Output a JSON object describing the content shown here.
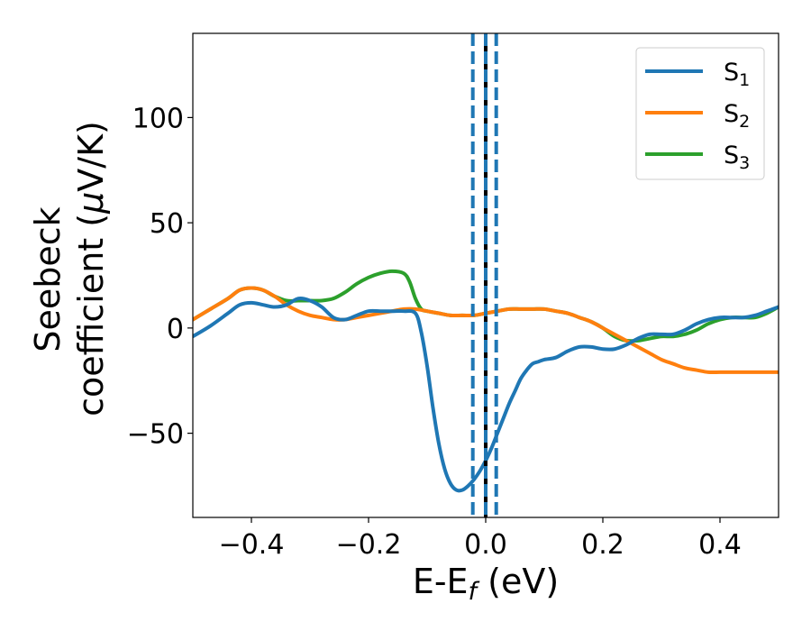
{
  "chart_data": {
    "type": "line",
    "xlabel": "E-E",
    "xlabel_sub": "f",
    "xlabel_unit": " (eV)",
    "ylabel_line1": "Seebeck",
    "ylabel_line2_prefix": "coefficient  (",
    "ylabel_mu": "μ",
    "ylabel_line2_suffix": "V/K)",
    "xlim": [
      -0.5,
      0.5
    ],
    "ylim": [
      -90,
      140
    ],
    "xticks": [
      -0.4,
      -0.2,
      0.0,
      0.2,
      0.4
    ],
    "xtick_labels": [
      "−0.4",
      "−0.2",
      "0.0",
      "0.2",
      "0.4"
    ],
    "yticks": [
      -50,
      0,
      50,
      100
    ],
    "ytick_labels": [
      "−50",
      "0",
      "50",
      "100"
    ],
    "grid": false,
    "legend_position": "top-right",
    "series": [
      {
        "name": "S",
        "name_sub": "1",
        "color": "#1f77b4",
        "x": [
          -0.5,
          -0.47,
          -0.44,
          -0.42,
          -0.4,
          -0.38,
          -0.36,
          -0.34,
          -0.32,
          -0.3,
          -0.28,
          -0.26,
          -0.24,
          -0.22,
          -0.2,
          -0.18,
          -0.16,
          -0.14,
          -0.12,
          -0.11,
          -0.1,
          -0.09,
          -0.08,
          -0.07,
          -0.06,
          -0.05,
          -0.04,
          -0.03,
          -0.02,
          -0.01,
          0.0,
          0.01,
          0.02,
          0.03,
          0.04,
          0.05,
          0.06,
          0.07,
          0.08,
          0.09,
          0.1,
          0.12,
          0.14,
          0.16,
          0.18,
          0.2,
          0.22,
          0.24,
          0.26,
          0.28,
          0.3,
          0.32,
          0.34,
          0.36,
          0.38,
          0.4,
          0.42,
          0.44,
          0.46,
          0.48,
          0.5
        ],
        "y": [
          -4,
          1,
          7,
          11,
          12,
          11,
          10,
          11,
          14,
          13,
          10,
          5,
          4,
          6,
          8,
          8,
          8,
          8,
          7,
          -2,
          -18,
          -38,
          -55,
          -67,
          -74,
          -77,
          -77,
          -75,
          -72,
          -68,
          -63,
          -57,
          -50,
          -43,
          -36,
          -30,
          -24,
          -20,
          -17,
          -16,
          -15,
          -14,
          -11,
          -9,
          -9,
          -10,
          -10,
          -8,
          -5,
          -3,
          -3,
          -3,
          -1,
          2,
          4,
          5,
          5,
          5,
          6,
          8,
          10
        ]
      },
      {
        "name": "S",
        "name_sub": "2",
        "color": "#ff7f0e",
        "x": [
          -0.5,
          -0.47,
          -0.44,
          -0.42,
          -0.4,
          -0.38,
          -0.36,
          -0.34,
          -0.32,
          -0.3,
          -0.28,
          -0.26,
          -0.24,
          -0.22,
          -0.2,
          -0.18,
          -0.16,
          -0.14,
          -0.12,
          -0.1,
          -0.08,
          -0.06,
          -0.04,
          -0.02,
          0.0,
          0.02,
          0.04,
          0.06,
          0.08,
          0.1,
          0.12,
          0.14,
          0.16,
          0.18,
          0.2,
          0.22,
          0.24,
          0.26,
          0.28,
          0.3,
          0.32,
          0.34,
          0.36,
          0.38,
          0.4,
          0.42,
          0.44,
          0.46,
          0.48,
          0.5
        ],
        "y": [
          4,
          9,
          14,
          18,
          19,
          18,
          15,
          11,
          8,
          6,
          5,
          4,
          4,
          5,
          6,
          7,
          8,
          9,
          9,
          8,
          7,
          6,
          6,
          6,
          7,
          8,
          9,
          9,
          9,
          9,
          8,
          7,
          5,
          3,
          0,
          -3,
          -6,
          -9,
          -12,
          -15,
          -17,
          -19,
          -20,
          -21,
          -21,
          -21,
          -21,
          -21,
          -21,
          -21
        ]
      },
      {
        "name": "S",
        "name_sub": "3",
        "color": "#2ca02c",
        "x": [
          -0.5,
          -0.47,
          -0.44,
          -0.42,
          -0.4,
          -0.38,
          -0.36,
          -0.34,
          -0.32,
          -0.3,
          -0.28,
          -0.26,
          -0.24,
          -0.22,
          -0.2,
          -0.18,
          -0.16,
          -0.14,
          -0.13,
          -0.12,
          -0.11,
          -0.1,
          -0.08,
          -0.06,
          -0.04,
          -0.02,
          0.0,
          0.02,
          0.04,
          0.06,
          0.08,
          0.1,
          0.12,
          0.14,
          0.16,
          0.18,
          0.2,
          0.22,
          0.24,
          0.26,
          0.28,
          0.3,
          0.32,
          0.34,
          0.36,
          0.38,
          0.4,
          0.42,
          0.44,
          0.46,
          0.48,
          0.5
        ],
        "y": [
          4,
          9,
          14,
          18,
          19,
          18,
          15,
          13,
          13,
          13,
          13,
          14,
          17,
          21,
          24,
          26,
          27,
          26,
          22,
          14,
          9,
          8,
          7,
          6,
          6,
          6,
          7,
          8,
          9,
          9,
          9,
          9,
          8,
          7,
          5,
          3,
          0,
          -4,
          -6,
          -6,
          -5,
          -4,
          -4,
          -3,
          -1,
          2,
          4,
          5,
          5,
          5,
          7,
          10
        ]
      }
    ],
    "vlines": [
      {
        "x": 0.0,
        "color": "#000000",
        "style": "solid"
      },
      {
        "x": -0.022,
        "color": "#1f77b4",
        "style": "dashed"
      },
      {
        "x": 0.0,
        "color": "#1f77b4",
        "style": "dashed"
      },
      {
        "x": 0.018,
        "color": "#1f77b4",
        "style": "dashed"
      }
    ]
  }
}
